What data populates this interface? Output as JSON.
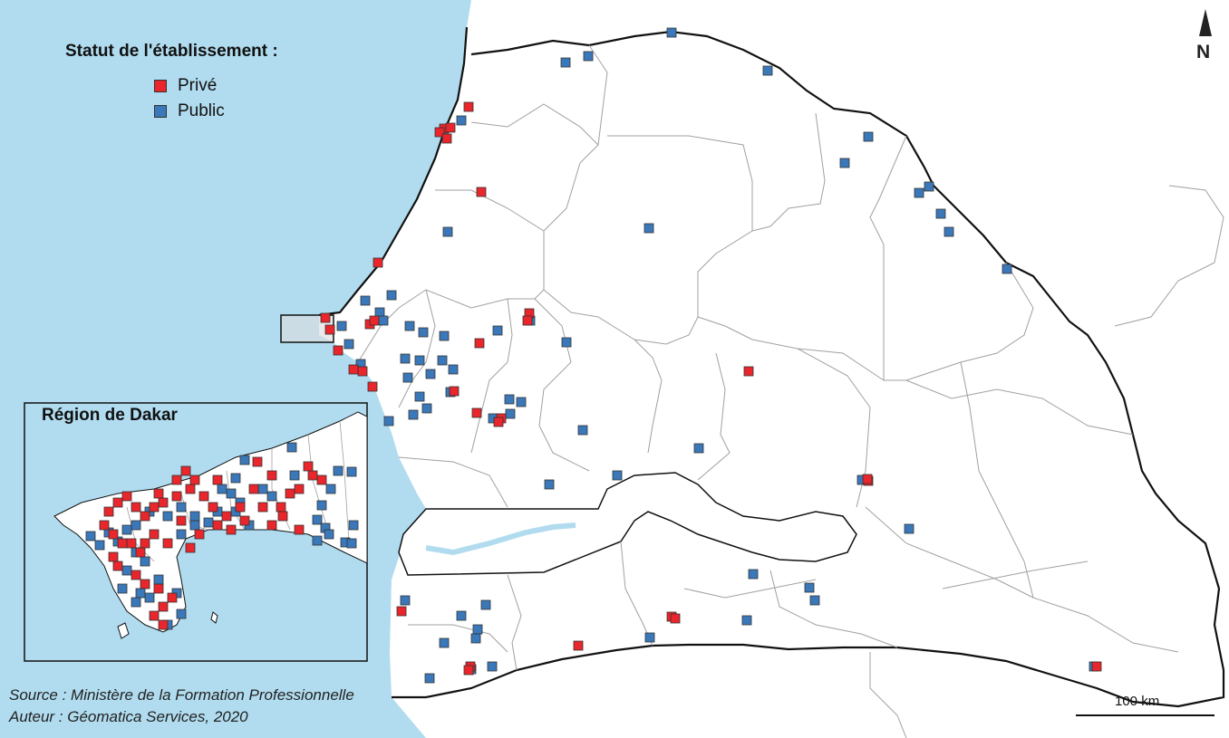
{
  "legend": {
    "title": "Statut de l'établissement :",
    "items": [
      {
        "label": "Privé",
        "color": "#e8262b"
      },
      {
        "label": "Public",
        "color": "#3b78b9"
      }
    ]
  },
  "inset": {
    "title": "Région de Dakar"
  },
  "credits": {
    "source": "Source : Ministère de la Formation Professionnelle",
    "author": "Auteur : Géomatica Services, 2020"
  },
  "scale_bar": {
    "label": "100 km"
  },
  "north_arrow": {
    "label": "N"
  },
  "colors": {
    "sea": "#b1dcef",
    "land": "#ffffff",
    "border": "#111111",
    "admin": "#a0a0a0",
    "river": "#b1dcef"
  }
}
